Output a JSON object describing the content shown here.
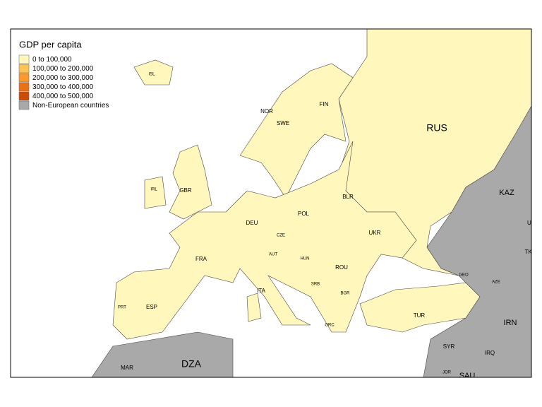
{
  "legend": {
    "title": "GDP per capita",
    "items": [
      {
        "label": "0 to 100,000",
        "color": "#fff7bc"
      },
      {
        "label": "100,000 to 200,000",
        "color": "#fec44f"
      },
      {
        "label": "200,000 to 300,000",
        "color": "#fe9929"
      },
      {
        "label": "300,000 to 400,000",
        "color": "#ec7014"
      },
      {
        "label": "400,000 to 500,000",
        "color": "#cc4c02"
      },
      {
        "label": "Non-European countries",
        "color": "#a9a9a9"
      }
    ]
  },
  "labels": [
    "ISL",
    "FIN",
    "NOR",
    "SWE",
    "RUS",
    "IRL",
    "GBR",
    "BLR",
    "POL",
    "DEU",
    "CZE",
    "UKR",
    "FRA",
    "AUT",
    "HUN",
    "ROU",
    "SRB",
    "BGR",
    "ITA",
    "PRT",
    "ESP",
    "GRC",
    "TUR",
    "KAZ",
    "UZB",
    "TKM",
    "GEO",
    "AZE",
    "IRN",
    "SYR",
    "IRQ",
    "JOR",
    "SAU",
    "MAR",
    "DZA"
  ]
}
